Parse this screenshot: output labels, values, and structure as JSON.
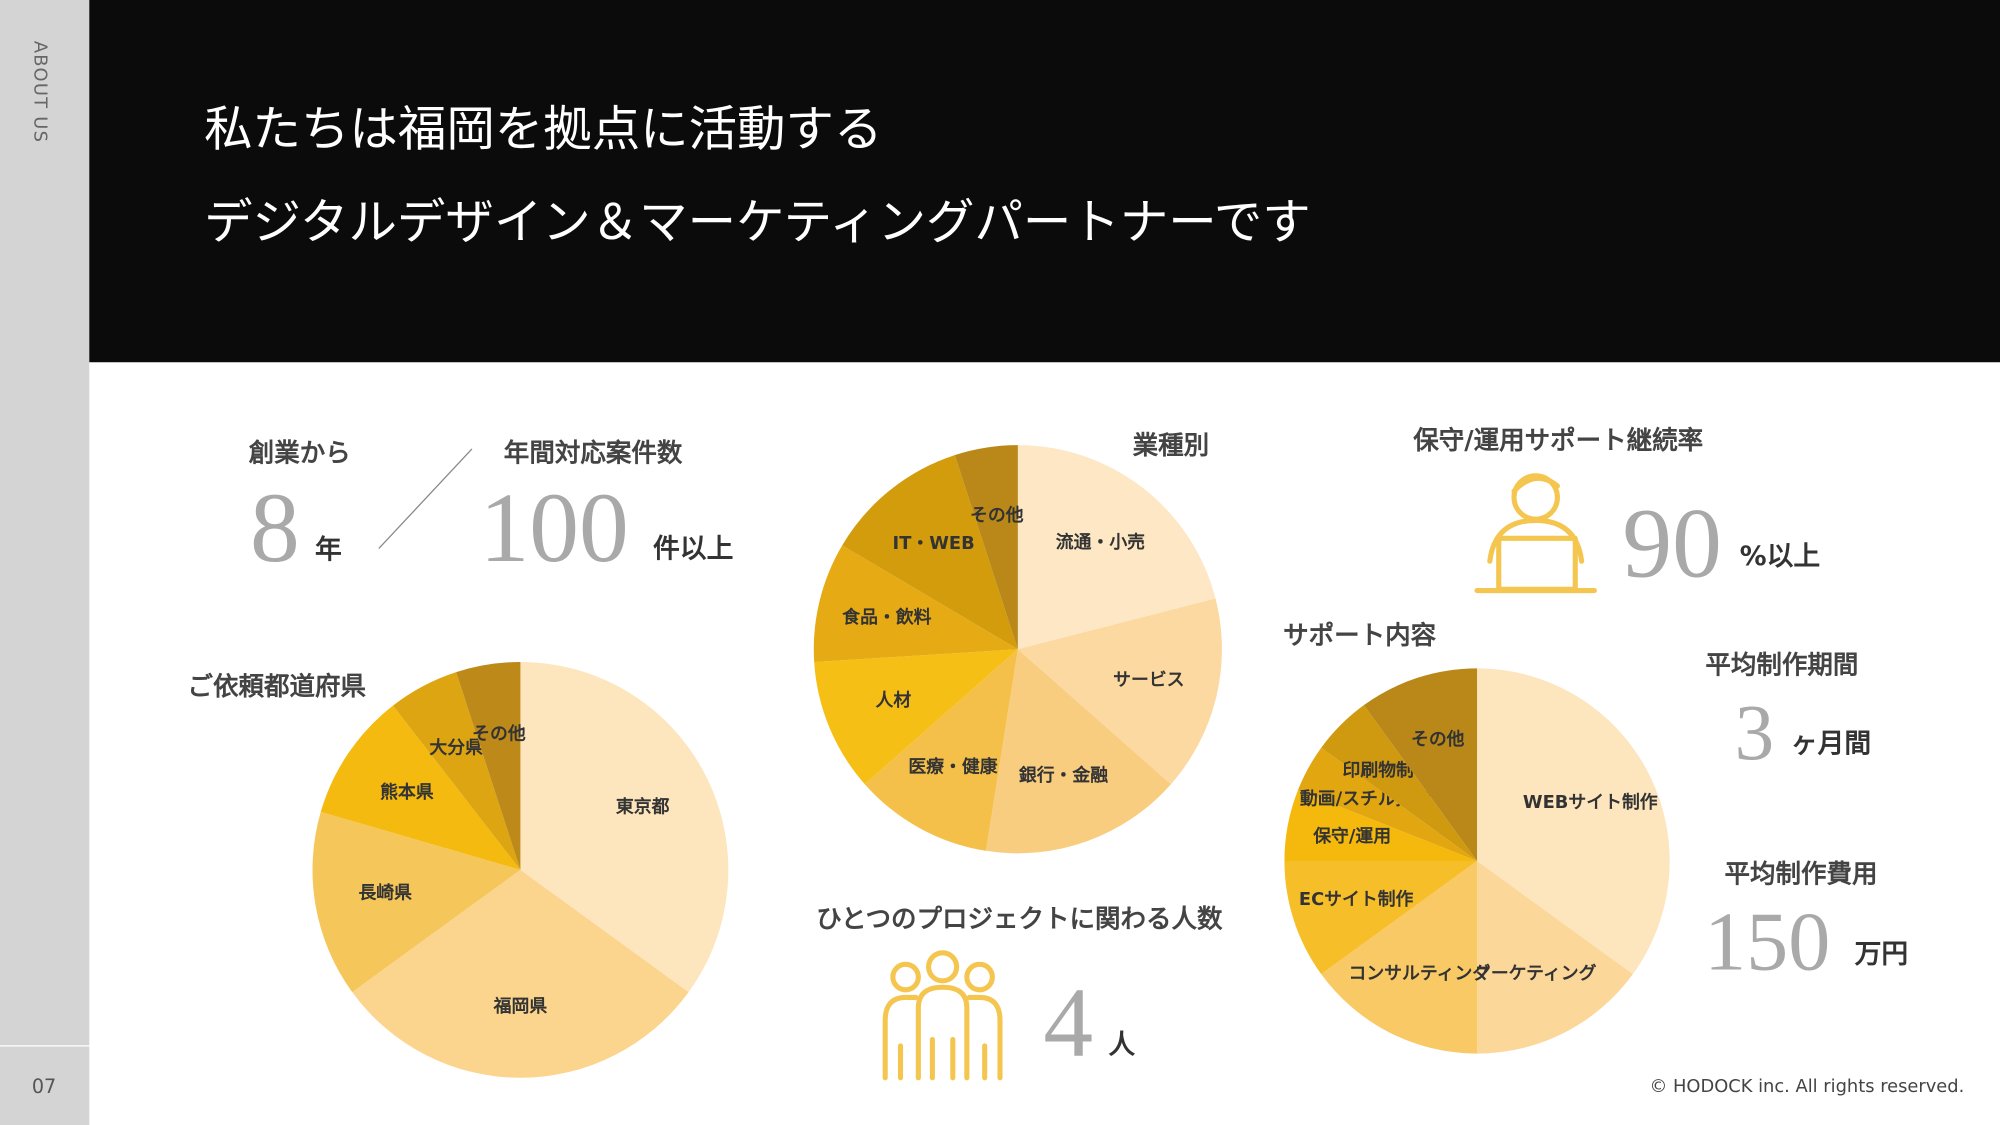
{
  "sidebar": {
    "label": "ABOUT US",
    "page": "07"
  },
  "header": {
    "lines": [
      "私たちは福岡を拠点に活動する",
      "デジタルデザイン＆マーケティングパートナーです"
    ]
  },
  "stats": {
    "founded": {
      "label": "創業から",
      "value": 8,
      "unit": "年"
    },
    "cases": {
      "label": "年間対応案件数",
      "value": 100,
      "unit": "件以上"
    },
    "retention": {
      "label": "保守/運用サポート継続率",
      "value": 90,
      "unit": "%以上"
    },
    "team": {
      "label": "ひとつのプロジェクトに関わる人数",
      "value": 4,
      "unit": "人"
    },
    "period": {
      "label": "平均制作期間",
      "value": 3,
      "unit": "ヶ月間"
    },
    "cost": {
      "label": "平均制作費用",
      "value": 150,
      "unit": "万円"
    }
  },
  "chart_data": [
    {
      "type": "pie",
      "title": "業種別",
      "categories": [
        "流通・小売",
        "サービス",
        "銀行・金融",
        "医療・健康",
        "人材",
        "食品・飲料",
        "IT・WEB",
        "その他"
      ],
      "values": [
        21,
        15.5,
        16,
        11,
        10.5,
        9.5,
        11.5,
        5
      ],
      "colors": [
        "#fde7c4",
        "#fcd9a0",
        "#f8cd80",
        "#f5c04a",
        "#f6bf15",
        "#e6aa15",
        "#d39c0c",
        "#b98819"
      ]
    },
    {
      "type": "pie",
      "title": "ご依頼都道府県",
      "categories": [
        "東京都",
        "福岡県",
        "長崎県",
        "熊本県",
        "大分県",
        "その他"
      ],
      "values": [
        35,
        30,
        14.5,
        10,
        5.5,
        5
      ],
      "colors": [
        "#fde5bd",
        "#fbd58e",
        "#f5c65a",
        "#f4ba10",
        "#dda511",
        "#bd8a1a"
      ]
    },
    {
      "type": "pie",
      "title": "サポート内容",
      "categories": [
        "WEBサイト制作",
        "マーケティング",
        "コンサルティング",
        "ECサイト制作",
        "保守/運用",
        "動画/スチル撮影",
        "印刷物制作",
        "その他"
      ],
      "values": [
        35,
        15,
        15,
        10,
        6,
        4,
        5,
        10
      ],
      "colors": [
        "#fde5bd",
        "#fcd79a",
        "#f8c965",
        "#f6bf2a",
        "#f4b90c",
        "#e2a611",
        "#d09a10",
        "#b98819"
      ]
    }
  ],
  "footer": {
    "copyright": "© HODOCK inc. All rights reserved."
  }
}
